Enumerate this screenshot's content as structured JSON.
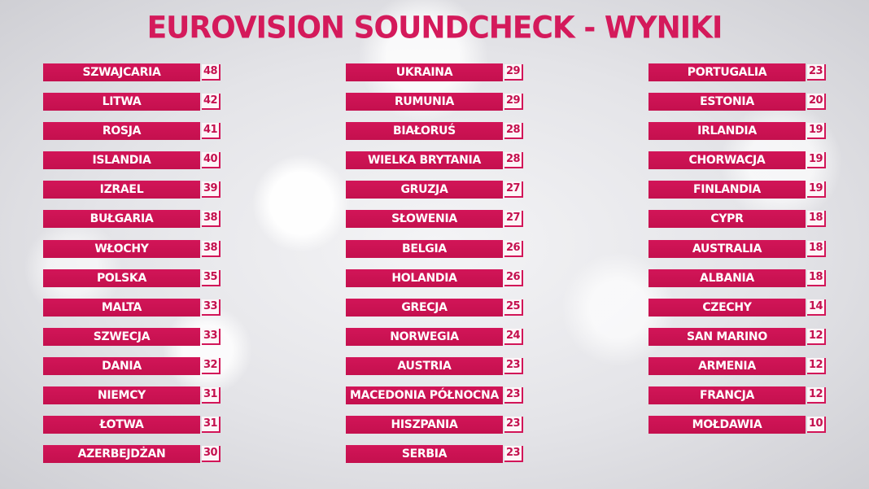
{
  "title": "EUROVISION SOUNDCHECK - WYNIKI",
  "accent_color": "#d21558",
  "columns": [
    [
      {
        "country": "SZWAJCARIA",
        "score": "48"
      },
      {
        "country": "LITWA",
        "score": "42"
      },
      {
        "country": "ROSJA",
        "score": "41"
      },
      {
        "country": "ISLANDIA",
        "score": "40"
      },
      {
        "country": "IZRAEL",
        "score": "39"
      },
      {
        "country": "BUŁGARIA",
        "score": "38"
      },
      {
        "country": "WŁOCHY",
        "score": "38"
      },
      {
        "country": "POLSKA",
        "score": "35"
      },
      {
        "country": "MALTA",
        "score": "33"
      },
      {
        "country": "SZWECJA",
        "score": "33"
      },
      {
        "country": "DANIA",
        "score": "32"
      },
      {
        "country": "NIEMCY",
        "score": "31"
      },
      {
        "country": "ŁOTWA",
        "score": "31"
      },
      {
        "country": "AZERBEJDŻAN",
        "score": "30"
      }
    ],
    [
      {
        "country": "UKRAINA",
        "score": "29"
      },
      {
        "country": "RUMUNIA",
        "score": "29"
      },
      {
        "country": "BIAŁORUŚ",
        "score": "28"
      },
      {
        "country": "WIELKA BRYTANIA",
        "score": "28"
      },
      {
        "country": "GRUZJA",
        "score": "27"
      },
      {
        "country": "SŁOWENIA",
        "score": "27"
      },
      {
        "country": "BELGIA",
        "score": "26"
      },
      {
        "country": "HOLANDIA",
        "score": "26"
      },
      {
        "country": "GRECJA",
        "score": "25"
      },
      {
        "country": "NORWEGIA",
        "score": "24"
      },
      {
        "country": "AUSTRIA",
        "score": "23"
      },
      {
        "country": "MACEDONIA PÓŁNOCNA",
        "score": "23"
      },
      {
        "country": "HISZPANIA",
        "score": "23"
      },
      {
        "country": "SERBIA",
        "score": "23"
      }
    ],
    [
      {
        "country": "PORTUGALIA",
        "score": "23"
      },
      {
        "country": "ESTONIA",
        "score": "20"
      },
      {
        "country": "IRLANDIA",
        "score": "19"
      },
      {
        "country": "CHORWACJA",
        "score": "19"
      },
      {
        "country": "FINLANDIA",
        "score": "19"
      },
      {
        "country": "CYPR",
        "score": "18"
      },
      {
        "country": "AUSTRALIA",
        "score": "18"
      },
      {
        "country": "ALBANIA",
        "score": "18"
      },
      {
        "country": "CZECHY",
        "score": "14"
      },
      {
        "country": "SAN MARINO",
        "score": "12"
      },
      {
        "country": "ARMENIA",
        "score": "12"
      },
      {
        "country": "FRANCJA",
        "score": "12"
      },
      {
        "country": "MOŁDAWIA",
        "score": "10"
      }
    ]
  ]
}
